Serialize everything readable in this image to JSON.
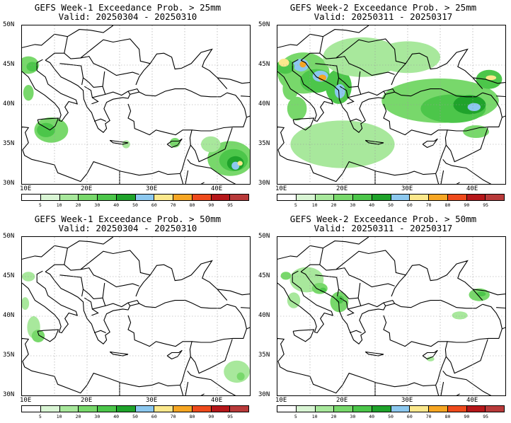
{
  "panels": [
    {
      "title": "GEFS Week-1 Exceedance Prob. > 25mm",
      "valid": "Valid: 20250304 - 20250310"
    },
    {
      "title": "GEFS Week-2 Exceedance Prob. > 25mm",
      "valid": "Valid: 20250311 - 20250317"
    },
    {
      "title": "GEFS Week-1 Exceedance Prob. > 50mm",
      "valid": "Valid: 20250304 - 20250310"
    },
    {
      "title": "GEFS Week-2 Exceedance Prob. > 50mm",
      "valid": "Valid: 20250311 - 20250317"
    }
  ],
  "lat_labels": [
    "50N",
    "45N",
    "40N",
    "35N",
    "30N"
  ],
  "lon_labels": [
    "10E",
    "20E",
    "30E",
    "40E"
  ],
  "colorbar": {
    "labels": [
      "5",
      "10",
      "20",
      "30",
      "40",
      "50",
      "60",
      "70",
      "80",
      "90",
      "95"
    ],
    "colors": [
      "#ffffff",
      "#d9f5d4",
      "#a8e89c",
      "#78d86b",
      "#4cc64a",
      "#1fa32b",
      "#8cc8ef",
      "#fbe88c",
      "#f6a623",
      "#ee4a1c",
      "#b5171a",
      "#b83a3a"
    ]
  },
  "colors": {
    "border": "#000000",
    "grid": "#9a9a9a",
    "ocean": "#ffffff"
  }
}
